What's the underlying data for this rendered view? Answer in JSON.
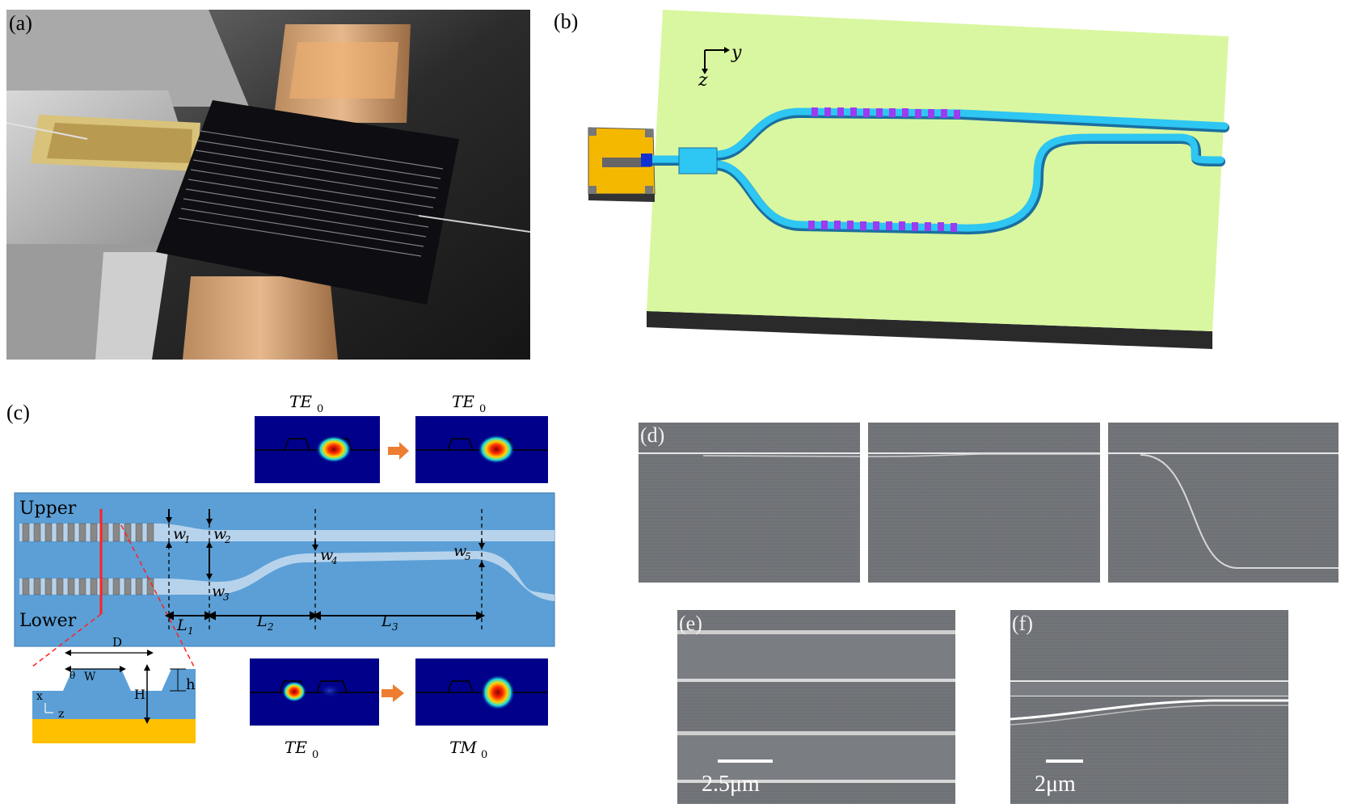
{
  "panels": {
    "a": {
      "label": "(a)"
    },
    "b": {
      "label": "(b)",
      "axis_y": "y",
      "axis_z": "z"
    },
    "c": {
      "label": "(c)",
      "mode_in_top": "TE",
      "mode_out_top": "TE",
      "mode_in_bottom": "TE",
      "mode_out_bottom": "TM",
      "mode_subscript": "0",
      "upper": "Upper",
      "lower": "Lower",
      "w1": "w",
      "w1_sub": "1",
      "w2": "w",
      "w2_sub": "2",
      "w3": "w",
      "w3_sub": "3",
      "w4": "w",
      "w4_sub": "4",
      "w5": "w",
      "w5_sub": "5",
      "L1": "L",
      "L1_sub": "1",
      "L2": "L",
      "L2_sub": "2",
      "L3": "L",
      "L3_sub": "3",
      "D": "D",
      "W": "W",
      "H": "H",
      "h": "h",
      "theta": "θ",
      "x": "x",
      "z": "z"
    },
    "d": {
      "label": "(d)"
    },
    "e": {
      "label": "(e)",
      "scale": "2.5μm"
    },
    "f": {
      "label": "(f)",
      "scale": "2μm"
    }
  },
  "colors": {
    "chip_green": "#d9f7a0",
    "waveguide_cyan": "#2ec6f2",
    "grating_purple": "#9b3cf0",
    "electrode_gold": "#f5b800",
    "schematic_blue": "#5b9fd6",
    "arrow_orange": "#ed7d31",
    "mode_bg": "#00008b",
    "cut_red": "#ff2020"
  }
}
